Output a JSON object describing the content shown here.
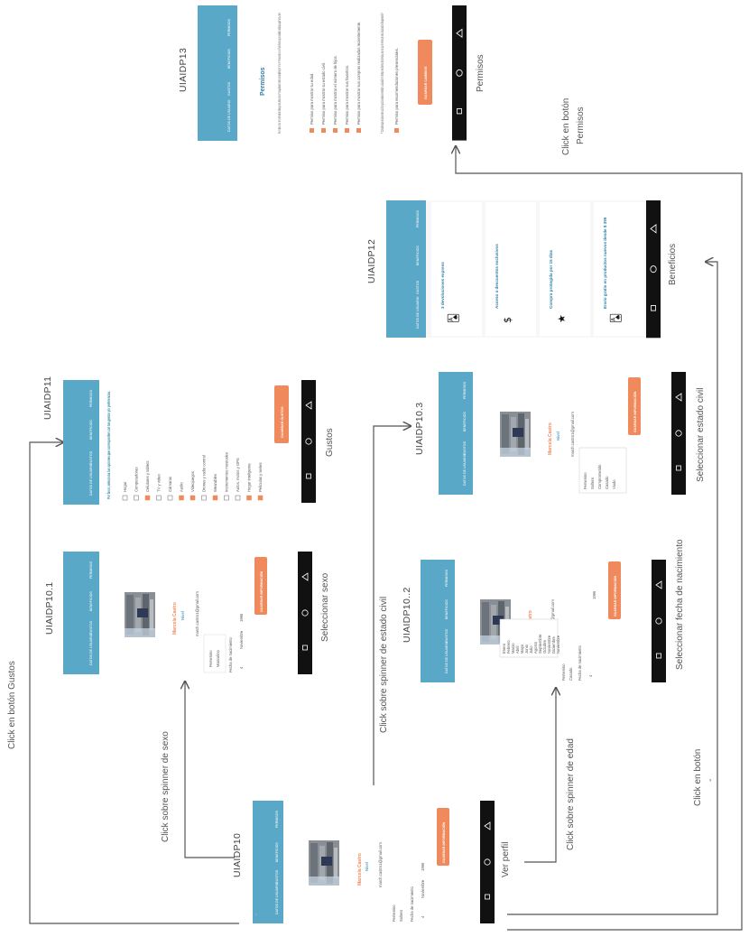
{
  "screens": {
    "s10": {
      "id": "UIAIDP10",
      "caption": "Ver perfil"
    },
    "s10_1": {
      "id": "UIAIDP10.1",
      "caption": "Seleccionar sexo"
    },
    "s10_2": {
      "id": "UIAIDP10..2",
      "caption": "Seleccionar fecha de nacimiento"
    },
    "s10_3": {
      "id": "UIAIDP10.3",
      "caption": "Seleccionar estado civil"
    },
    "s11": {
      "id": "UIAIDP11",
      "caption": "Gustos"
    },
    "s12": {
      "id": "UIAIDP12",
      "caption": "Beneficios"
    },
    "s13": {
      "id": "UIAIDP13",
      "caption": "Permisos"
    }
  },
  "transitions": {
    "gustos": "Click en botón Gustos",
    "sexo": "Click sobre spinner de sexo",
    "civil": "Click sobre spinner de estado civil",
    "edad": "Click sobre spinner de edad",
    "beneficios_a": "Click en botón",
    "beneficios_b": "-",
    "permisos_a": "Click en botón",
    "permisos_b": "Permisos"
  },
  "tabs": {
    "datos": "DATOS DE USUARIO",
    "gustos": "GUSTOS",
    "beneficios": "BENEFICIOS",
    "permisos": "PERMISOS"
  },
  "profile": {
    "name": "Marcela Castro",
    "level": "Nivel",
    "email": "march.castro1@gmail.com",
    "sexo": "Femenino",
    "civil": "Soltero",
    "fecha_label": "Fecha de nacimiento",
    "day": "4",
    "month": "Noviembre",
    "year": "1996",
    "save": "GUARDAR INFORMACIÓN"
  },
  "sexo_options": [
    "Femenino",
    "Masculino"
  ],
  "months": [
    "Enero",
    "Febrero",
    "Marzo",
    "Abril",
    "Mayo",
    "Junio",
    "Julio",
    "Agosto",
    "Septiembre",
    "Octubre",
    "Noviembre",
    "Diciembre",
    "Noviembre"
  ],
  "civil_options": [
    "Femenino",
    "Soltero",
    "Comprometido",
    "Casado",
    "Viudo"
  ],
  "gustos": {
    "intro": "Por favor, selecciona las opciones que corresponden con tus gustos y/o preferencias.",
    "items": [
      {
        "label": "Hogar",
        "checked": false
      },
      {
        "label": "Computadoras",
        "checked": false
      },
      {
        "label": "Celulares y tablets",
        "checked": true
      },
      {
        "label": "TV y video",
        "checked": false
      },
      {
        "label": "Cámaras",
        "checked": false
      },
      {
        "label": "Audio",
        "checked": true
      },
      {
        "label": "Videojuegos",
        "checked": true
      },
      {
        "label": "Drones y radio control",
        "checked": false
      },
      {
        "label": "Wearables",
        "checked": true
      },
      {
        "label": "Instrumentos musicales",
        "checked": false
      },
      {
        "label": "Autos, motos y GPS",
        "checked": false
      },
      {
        "label": "Hogar inteligente",
        "checked": true
      },
      {
        "label": "Películas y series",
        "checked": true
      }
    ],
    "save": "GUARDAR GUSTOS"
  },
  "beneficios": [
    {
      "label": "3 devoluciones express",
      "icon": "cards-icon"
    },
    {
      "label": "Acceso a descuentos exclusivos",
      "icon": "dollar-icon"
    },
    {
      "label": "Compra protegida por 15 días",
      "icon": "star-icon"
    },
    {
      "label": "Envío gratis en productos nuevos desde $ 399",
      "icon": "cards-icon"
    }
  ],
  "permisos": {
    "title": "Permisos",
    "intro": "Para brindarte un mejor servicio dentro de las tiendas que visites, selecciona los permisos que deseas se muestren a los vendedores y así mismo permitirles acercarse a ti con el fin de ofrecerte una gran variedad de productos que ayude más a tu interes.",
    "items": [
      "Permiso para mostrar su edad.",
      "Permiso para mostrar su estado civil.",
      "Permiso para mostrar el número de hijos.",
      "Permiso para mostrar sus favoritos.",
      "Permiso para mostrar sus compras realizadas recientemente."
    ],
    "note": "** Considera que al activar este opción proporcionarás al vendedor tu ubicación en tiempo real dentro de la tienda, una vez que te retires de esta, la ubicación desaparecerá.**",
    "last": "Permiso para recomendaciones presenciales.",
    "save": "GUARDAR CAMBIOS"
  },
  "colors": {
    "header": "#5aa8c8",
    "accent": "#f08a5d",
    "navbar": "#111111"
  }
}
